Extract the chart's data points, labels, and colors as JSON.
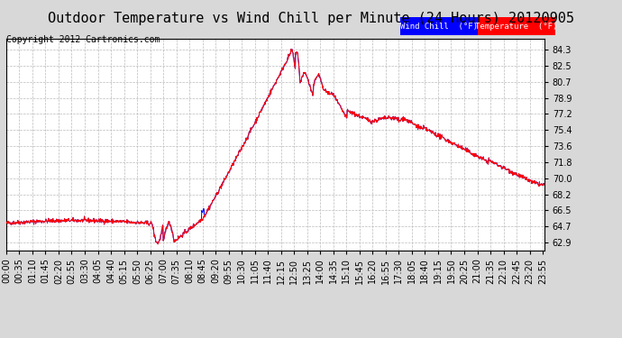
{
  "title": "Outdoor Temperature vs Wind Chill per Minute (24 Hours) 20120905",
  "copyright": "Copyright 2012 Cartronics.com",
  "ylabel_right": [
    "84.3",
    "82.5",
    "80.7",
    "78.9",
    "77.2",
    "75.4",
    "73.6",
    "71.8",
    "70.0",
    "68.2",
    "66.5",
    "64.7",
    "62.9"
  ],
  "ytick_vals": [
    84.3,
    82.5,
    80.7,
    78.9,
    77.2,
    75.4,
    73.6,
    71.8,
    70.0,
    68.2,
    66.5,
    64.7,
    62.9
  ],
  "ylim": [
    62.0,
    85.5
  ],
  "xtick_labels": [
    "00:00",
    "00:35",
    "01:10",
    "01:45",
    "02:20",
    "02:55",
    "03:30",
    "04:05",
    "04:40",
    "05:15",
    "05:50",
    "06:25",
    "07:00",
    "07:35",
    "08:10",
    "08:45",
    "09:20",
    "09:55",
    "10:30",
    "11:05",
    "11:40",
    "12:15",
    "12:50",
    "13:25",
    "14:00",
    "14:35",
    "15:10",
    "15:45",
    "16:20",
    "16:55",
    "17:30",
    "18:05",
    "18:40",
    "19:15",
    "19:50",
    "20:25",
    "21:00",
    "21:35",
    "22:10",
    "22:45",
    "23:20",
    "23:55"
  ],
  "bg_color": "#d8d8d8",
  "plot_bg_color": "#ffffff",
  "grid_color": "#bbbbbb",
  "temp_color": "#ff0000",
  "wind_chill_color": "#0000ff",
  "legend_wind_bg": "#0000ff",
  "legend_temp_bg": "#ff0000",
  "title_fontsize": 11,
  "copyright_fontsize": 7,
  "tick_fontsize": 7
}
